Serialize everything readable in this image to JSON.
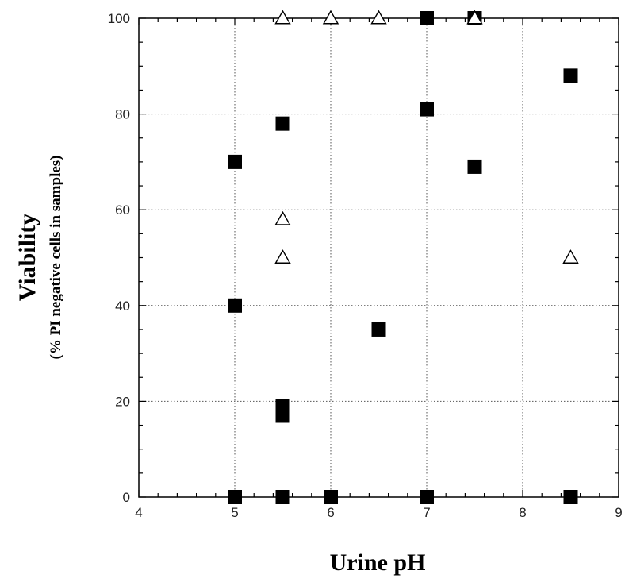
{
  "chart_data": {
    "type": "scatter",
    "title": "",
    "xlabel": "Urine pH",
    "ylabel": "Viability",
    "ylabel_sub": "(% PI negative cells in samples)",
    "xlim": [
      4,
      9
    ],
    "ylim": [
      0,
      100
    ],
    "x_ticks": [
      "4",
      "5",
      "6",
      "7",
      "8",
      "9"
    ],
    "y_ticks": [
      "0",
      "20",
      "40",
      "60",
      "80",
      "100"
    ],
    "grid": true,
    "series": [
      {
        "marker": "filled-square",
        "color": "#000000",
        "points": [
          {
            "x": 5.0,
            "y": 70
          },
          {
            "x": 5.0,
            "y": 40
          },
          {
            "x": 5.0,
            "y": 0
          },
          {
            "x": 5.5,
            "y": 78
          },
          {
            "x": 5.5,
            "y": 19
          },
          {
            "x": 5.5,
            "y": 17
          },
          {
            "x": 5.5,
            "y": 0
          },
          {
            "x": 6.0,
            "y": 0
          },
          {
            "x": 6.5,
            "y": 35
          },
          {
            "x": 7.0,
            "y": 100
          },
          {
            "x": 7.0,
            "y": 81
          },
          {
            "x": 7.0,
            "y": 0
          },
          {
            "x": 7.5,
            "y": 100
          },
          {
            "x": 7.5,
            "y": 69
          },
          {
            "x": 8.5,
            "y": 88
          },
          {
            "x": 8.5,
            "y": 0
          }
        ]
      },
      {
        "marker": "open-triangle",
        "color": "#000000",
        "points": [
          {
            "x": 5.5,
            "y": 100
          },
          {
            "x": 6.0,
            "y": 100
          },
          {
            "x": 6.5,
            "y": 100
          },
          {
            "x": 7.5,
            "y": 100
          },
          {
            "x": 5.5,
            "y": 58
          },
          {
            "x": 5.5,
            "y": 50
          },
          {
            "x": 8.5,
            "y": 50
          }
        ]
      }
    ]
  }
}
